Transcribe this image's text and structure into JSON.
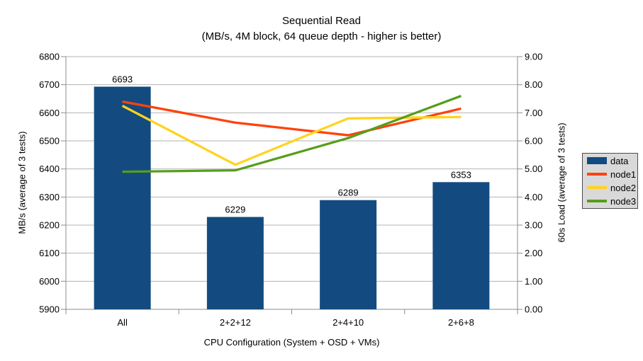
{
  "chart_data": {
    "type": "combo-bar-line",
    "title": "Sequential Read",
    "subtitle": "(MB/s, 4M block, 64 queue depth - higher is better)",
    "categories": [
      "All",
      "2+2+12",
      "2+4+10",
      "2+6+8"
    ],
    "series": [
      {
        "name": "data",
        "type": "bar",
        "axis": "left",
        "color": "#134b80",
        "values": [
          6693,
          6229,
          6289,
          6353
        ],
        "data_labels": true
      },
      {
        "name": "node1",
        "type": "line",
        "axis": "right",
        "color": "#ff420e",
        "values": [
          7.4,
          6.65,
          6.2,
          7.15
        ]
      },
      {
        "name": "node2",
        "type": "line",
        "axis": "right",
        "color": "#ffd320",
        "values": [
          7.25,
          5.15,
          6.8,
          6.85
        ]
      },
      {
        "name": "node3",
        "type": "line",
        "axis": "right",
        "color": "#579d1c",
        "values": [
          4.9,
          4.95,
          6.1,
          7.6
        ]
      }
    ],
    "left_axis": {
      "title": "MB/s (average of 3 tests)",
      "min": 5900,
      "max": 6800,
      "step": 100,
      "decimals": 0
    },
    "right_axis": {
      "title": "60s Load (average of 3 tests)",
      "min": 0,
      "max": 9,
      "step": 1,
      "decimals": 2
    },
    "x_axis": {
      "title": "CPU Configuration (System + OSD + VMs)"
    },
    "legend": {
      "position": "right",
      "items": [
        "data",
        "node1",
        "node2",
        "node3"
      ]
    },
    "style": {
      "gridline_color": "#b3b3b3",
      "axis_color": "#8c8c8c",
      "grid_on": true
    }
  }
}
